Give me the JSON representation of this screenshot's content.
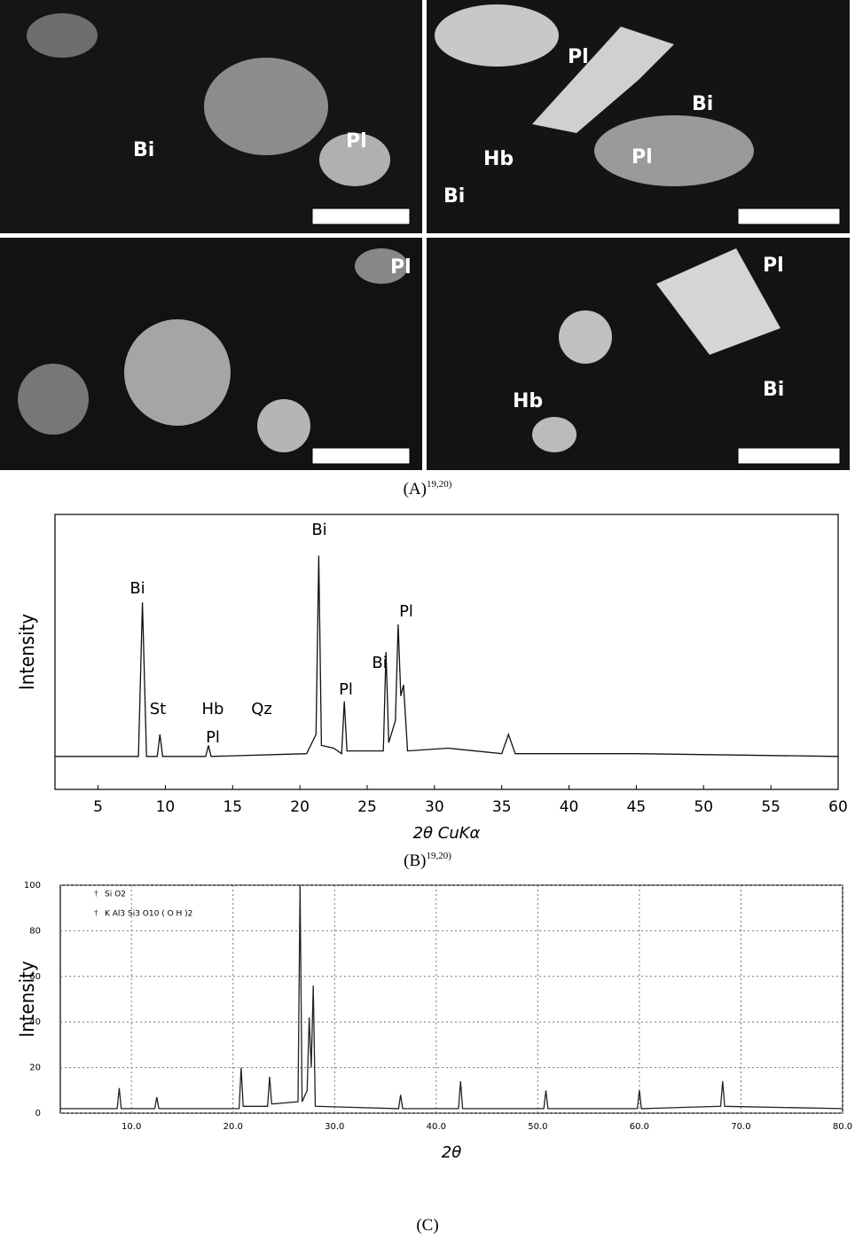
{
  "panel_a": {
    "caption": "(A)",
    "caption_ref": "19,20)",
    "images": [
      {
        "labels": [
          "Bi",
          "Pl"
        ]
      },
      {
        "labels": [
          "Pl",
          "Bi",
          "Hb",
          "Pl",
          "Bi"
        ]
      },
      {
        "labels": [
          "Pl"
        ]
      },
      {
        "labels": [
          "Pl",
          "Hb",
          "Bi"
        ]
      }
    ]
  },
  "chart_data": [
    {
      "type": "line",
      "caption": "(B)",
      "caption_ref": "19,20)",
      "ylabel": "Intensity",
      "xlabel": "2θ CuKα",
      "xlim": [
        1.8,
        60
      ],
      "xticks": [
        5,
        10,
        15,
        20,
        25,
        30,
        35,
        40,
        45,
        50,
        55,
        60
      ],
      "ylim": [
        0,
        100
      ],
      "grid": false,
      "color": "#111111",
      "annotations": [
        "Bi",
        "Bi",
        "St",
        "Hb",
        "Qz",
        "Pl",
        "Pl",
        "Bi",
        "Pl"
      ],
      "x": [
        1.8,
        5,
        8.0,
        8.3,
        8.6,
        9.4,
        9.6,
        9.8,
        13,
        13.2,
        13.4,
        20.5,
        21.2,
        21.4,
        21.6,
        22.5,
        23.1,
        23.3,
        23.5,
        26.2,
        26.4,
        26.6,
        27.1,
        27.3,
        27.5,
        27.7,
        28.0,
        31,
        35,
        35.5,
        36,
        45,
        60
      ],
      "values": [
        12,
        12,
        12,
        68,
        12,
        12,
        20,
        12,
        12,
        16,
        12,
        13,
        20,
        85,
        16,
        15,
        13,
        32,
        14,
        14,
        50,
        17,
        25,
        60,
        34,
        38,
        14,
        15,
        13,
        20,
        13,
        13,
        12
      ]
    },
    {
      "type": "line",
      "caption": "(C)",
      "ylabel": "Intensity",
      "xlabel": "2θ",
      "legend": [
        "Si O2",
        "K Al3 Si3 O10 ( O H )2"
      ],
      "xlim": [
        3,
        80
      ],
      "xticks": [
        {
          "value": 10,
          "label": "10.0"
        },
        {
          "value": 20,
          "label": "20.0"
        },
        {
          "value": 30,
          "label": "30.0"
        },
        {
          "value": 40,
          "label": "40.0"
        },
        {
          "value": 50,
          "label": "50.0"
        },
        {
          "value": 60,
          "label": "60.0"
        },
        {
          "value": 70,
          "label": "70.0"
        },
        {
          "value": 80,
          "label": "80.0"
        }
      ],
      "ylim": [
        0,
        100
      ],
      "yticks": [
        0,
        20,
        40,
        60,
        80,
        100
      ],
      "grid": true,
      "color": "#222222",
      "x": [
        3,
        8.6,
        8.8,
        9.0,
        12.3,
        12.5,
        12.7,
        20.6,
        20.8,
        21.0,
        23.4,
        23.6,
        23.8,
        26.4,
        26.6,
        26.8,
        27.3,
        27.5,
        27.7,
        27.9,
        28.1,
        36.3,
        36.5,
        36.7,
        42.2,
        42.4,
        42.6,
        50.6,
        50.8,
        51.0,
        59.8,
        60,
        60.2,
        68,
        68.2,
        68.4,
        80
      ],
      "values": [
        2,
        2,
        11,
        2,
        2,
        7,
        2,
        2,
        20,
        3,
        3,
        16,
        4,
        5,
        100,
        5,
        10,
        42,
        20,
        56,
        3,
        2,
        8,
        2,
        2,
        14,
        2,
        2,
        10,
        2,
        2,
        10,
        2,
        3,
        14,
        3,
        2
      ]
    }
  ]
}
